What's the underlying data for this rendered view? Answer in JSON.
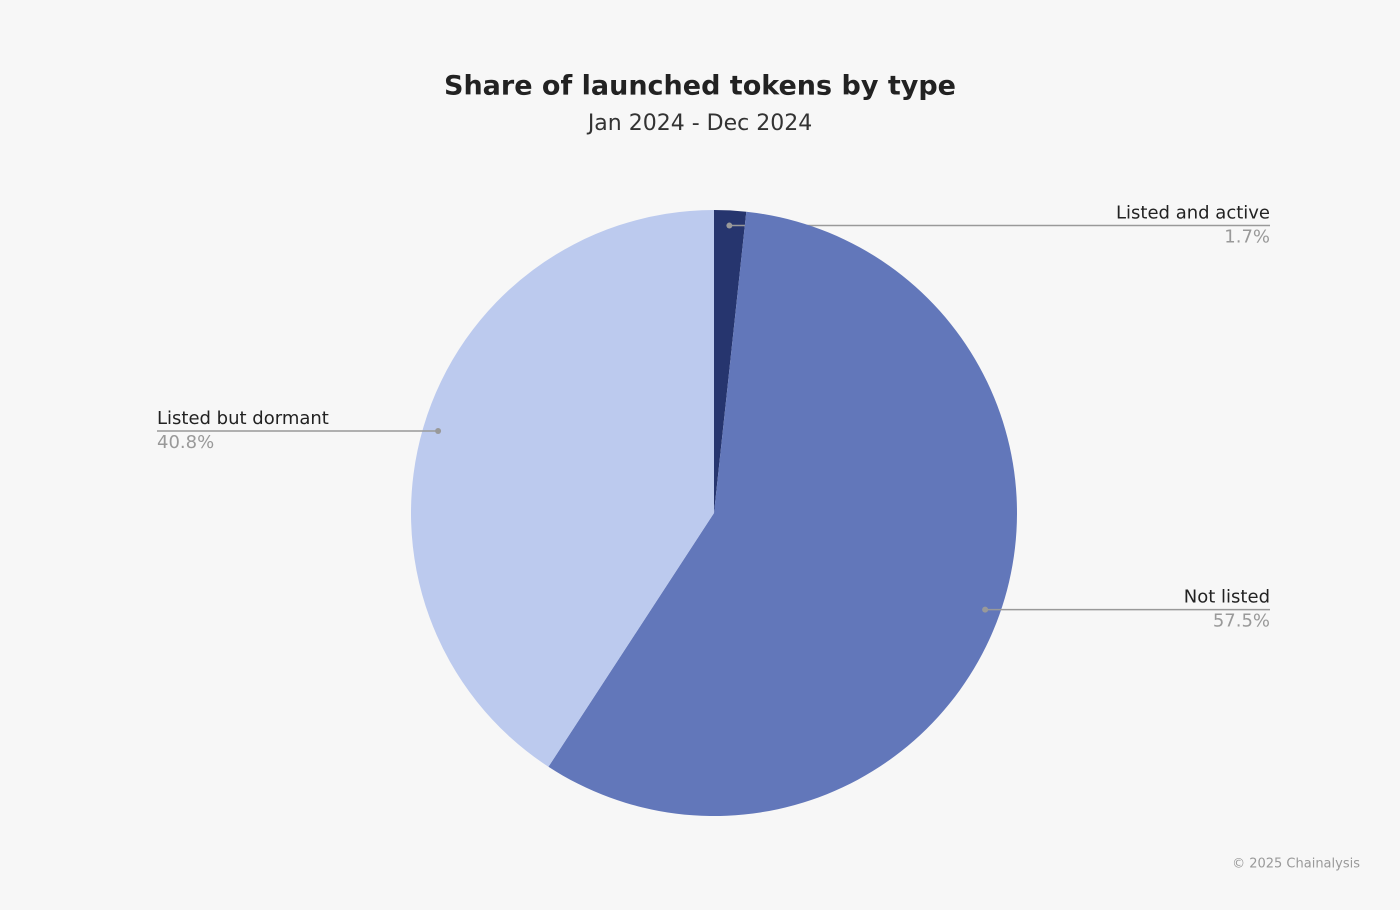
{
  "chart_data": {
    "type": "pie",
    "title": "Share of launched tokens by type",
    "subtitle": "Jan 2024 - Dec 2024",
    "categories": [
      "Listed and active",
      "Not listed",
      "Listed but dormant"
    ],
    "values": [
      1.7,
      57.5,
      40.8
    ],
    "value_labels": [
      "1.7%",
      "57.5%",
      "40.8%"
    ],
    "colors": [
      "#26356e",
      "#6277ba",
      "#bccaee"
    ],
    "source": "© 2025 Chainalysis"
  }
}
